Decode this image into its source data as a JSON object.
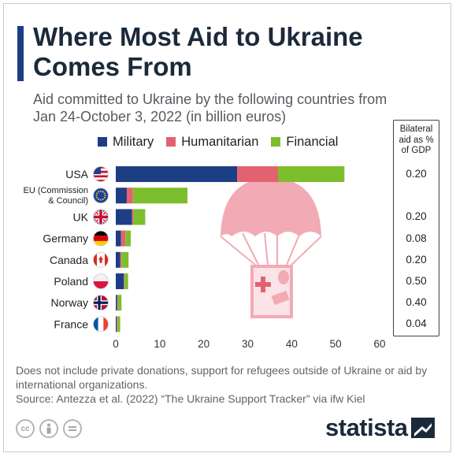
{
  "title": "Where Most Aid to Ukraine Comes From",
  "subtitle": "Aid committed to Ukraine by the following countries from Jan 24-October 3, 2022 (in billion euros)",
  "gdp_header": "Bilateral\naid as %\nof GDP",
  "note": "Does not include private donations, support for refugees outside of Ukraine or aid by international organizations.",
  "source": "Source: Antezza et al. (2022) “The Ukraine Support Tracker” via ifw Kiel",
  "logo": "statista",
  "colors": {
    "military": "#1c3e85",
    "humanitarian": "#e2636f",
    "financial": "#7cbe2c",
    "parachute": "#f2aab4"
  },
  "license_icons": [
    "cc-icon",
    "attribution-icon",
    "no-derivatives-icon"
  ],
  "chart_data": {
    "type": "bar",
    "orientation": "horizontal",
    "stacked": true,
    "categories": [
      "USA",
      "EU (Commission & Council)",
      "UK",
      "Germany",
      "Canada",
      "Poland",
      "Norway",
      "France"
    ],
    "flags": [
      "us-flag-icon",
      "eu-flag-icon",
      "uk-flag-icon",
      "germany-flag-icon",
      "canada-flag-icon",
      "poland-flag-icon",
      "norway-flag-icon",
      "france-flag-icon"
    ],
    "series": [
      {
        "name": "Military",
        "values": [
          27.6,
          2.5,
          3.7,
          1.2,
          1.0,
          1.8,
          0.3,
          0.2
        ]
      },
      {
        "name": "Humanitarian",
        "values": [
          9.3,
          1.4,
          0.3,
          1.0,
          0.3,
          0.2,
          0.2,
          0.2
        ]
      },
      {
        "name": "Financial",
        "values": [
          15.1,
          12.4,
          2.7,
          1.2,
          1.6,
          0.8,
          0.8,
          0.6
        ]
      }
    ],
    "gdp_share": [
      "0.20",
      "",
      "0.20",
      "0.08",
      "0.20",
      "0.50",
      "0.40",
      "0.04"
    ],
    "xlim": [
      0,
      60
    ],
    "xticks": [
      0,
      10,
      20,
      30,
      40,
      50,
      60
    ],
    "xlabel": "",
    "ylabel": "",
    "grid": false,
    "legend_position": "top"
  }
}
